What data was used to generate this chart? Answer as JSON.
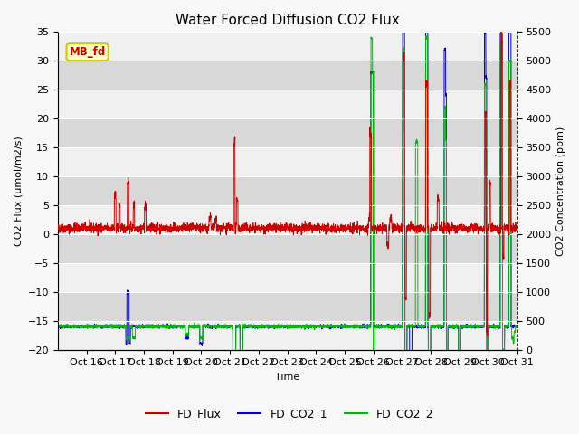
{
  "title": "Water Forced Diffusion CO2 Flux",
  "xlabel": "Time",
  "ylabel_left": "CO2 Flux (umol/m2/s)",
  "ylabel_right": "CO2 Concentration (ppm)",
  "ylim_left": [
    -20,
    35
  ],
  "ylim_right": [
    0,
    5500
  ],
  "yticks_left": [
    -20,
    -15,
    -10,
    -5,
    0,
    5,
    10,
    15,
    20,
    25,
    30,
    35
  ],
  "yticks_right": [
    0,
    500,
    1000,
    1500,
    2000,
    2500,
    3000,
    3500,
    4000,
    4500,
    5000,
    5500
  ],
  "xtick_labels": [
    "Oct 16",
    "Oct 17",
    "Oct 18",
    "Oct 19",
    "Oct 20",
    "Oct 21",
    "Oct 22",
    "Oct 23",
    "Oct 24",
    "Oct 25",
    "Oct 26",
    "Oct 27",
    "Oct 28",
    "Oct 29",
    "Oct 30",
    "Oct 31"
  ],
  "color_flux": "#cc0000",
  "color_co2_1": "#0000cc",
  "color_co2_2": "#00bb00",
  "legend_labels": [
    "FD_Flux",
    "FD_CO2_1",
    "FD_CO2_2"
  ],
  "legend_colors": [
    "#cc0000",
    "#0000cc",
    "#00bb00"
  ],
  "annotation_text": "MB_fd",
  "annotation_color": "#cc0000",
  "annotation_bg": "#ffffcc",
  "plot_bg_light": "#f0f0f0",
  "plot_bg_dark": "#d8d8d8",
  "fig_bg": "#f8f8f8",
  "grid_color": "#ffffff",
  "title_fontsize": 11,
  "label_fontsize": 8,
  "tick_fontsize": 8,
  "legend_fontsize": 9
}
